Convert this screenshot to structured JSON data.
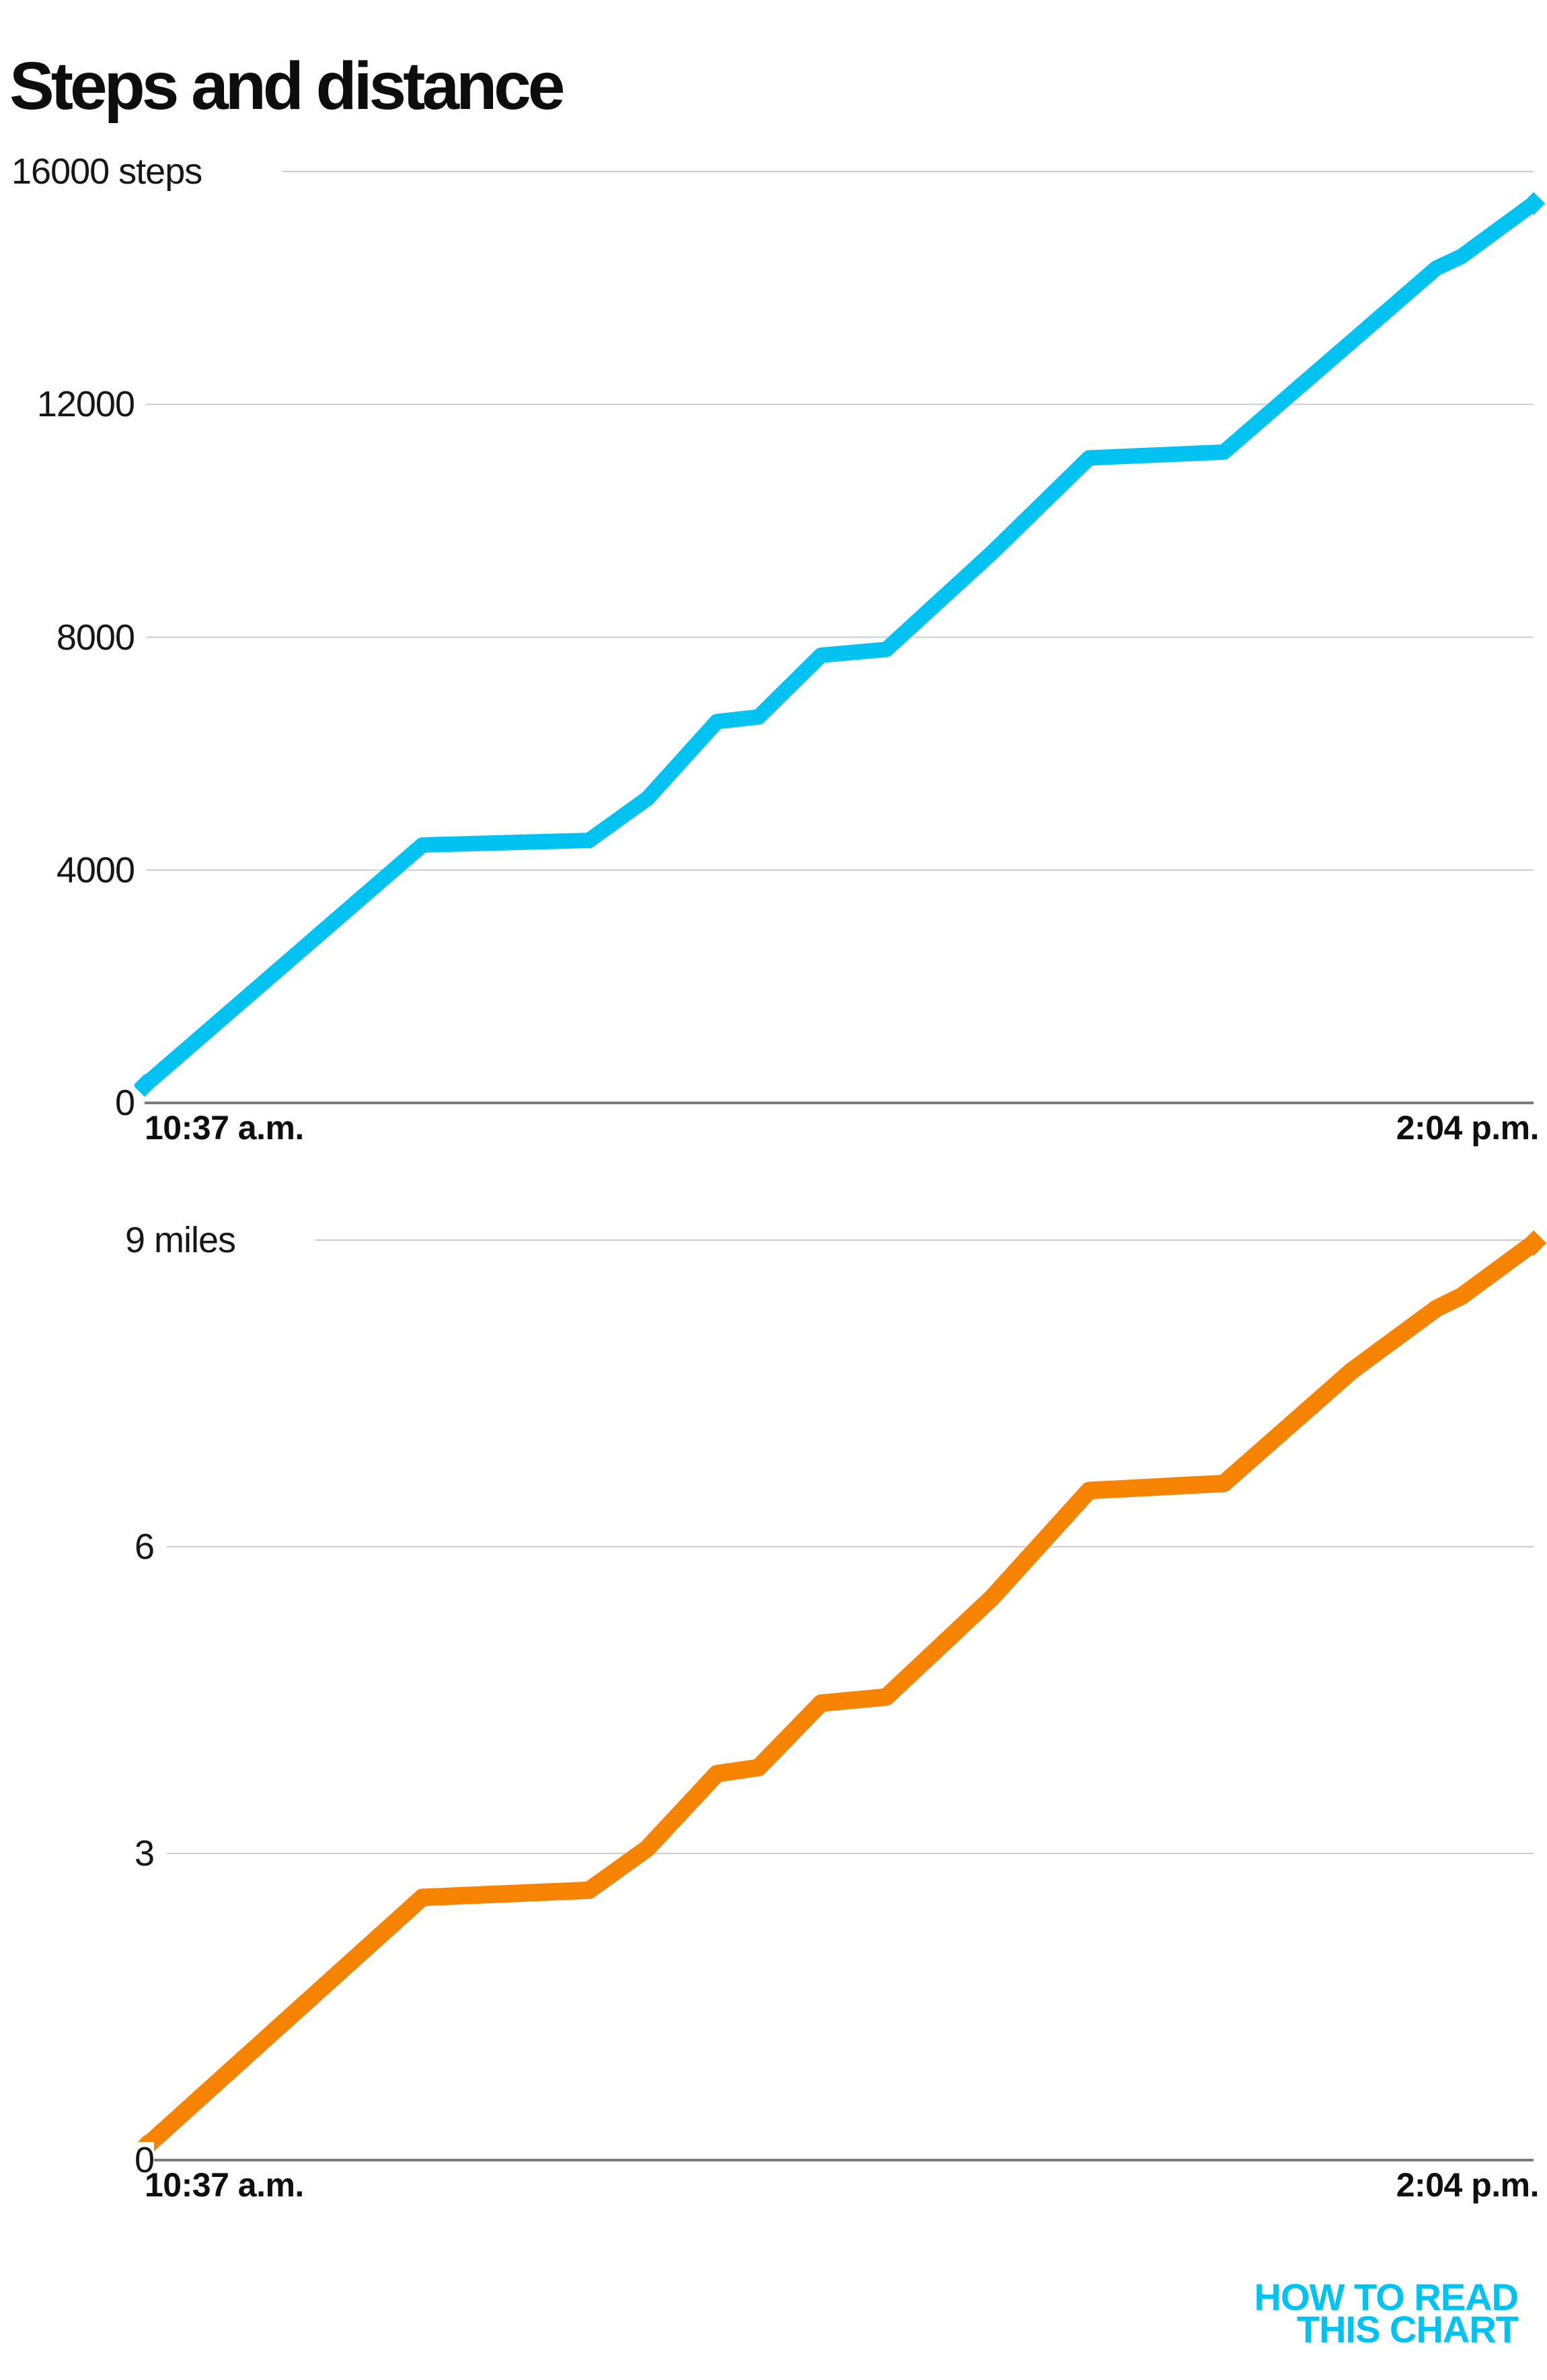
{
  "page": {
    "title": "Steps and distance"
  },
  "logo": {
    "line1": "HOW TO READ",
    "line2": "THIS CHART",
    "color": "#00c3f2"
  },
  "colors": {
    "grid": "#cdcdcd",
    "baseline": "#7a7a7a",
    "text": "#0f0f0f"
  },
  "chart_data": [
    {
      "type": "line",
      "name": "steps",
      "title": "Steps over time",
      "color": "#00c3f2",
      "ylim": [
        0,
        16000
      ],
      "grid": true,
      "legend_position": "none",
      "x_start_label": "10:37 a.m.",
      "x_end_label": "2:04 p.m.",
      "yticks": [
        {
          "value": 16000,
          "num": "16000",
          "unit": " steps"
        },
        {
          "value": 12000,
          "num": "12000",
          "unit": ""
        },
        {
          "value": 8000,
          "num": "8000",
          "unit": ""
        },
        {
          "value": 4000,
          "num": "4000",
          "unit": ""
        },
        {
          "value": 0,
          "num": "0",
          "unit": ""
        }
      ],
      "points": [
        [
          0.0,
          300
        ],
        [
          0.2,
          4430
        ],
        [
          0.32,
          4510
        ],
        [
          0.362,
          5230
        ],
        [
          0.412,
          6550
        ],
        [
          0.442,
          6630
        ],
        [
          0.487,
          7690
        ],
        [
          0.534,
          7790
        ],
        [
          0.61,
          9450
        ],
        [
          0.68,
          11080
        ],
        [
          0.777,
          11180
        ],
        [
          0.869,
          13080
        ],
        [
          0.93,
          14340
        ],
        [
          0.948,
          14540
        ],
        [
          1.0,
          15450
        ]
      ]
    },
    {
      "type": "line",
      "name": "distance",
      "title": "Distance over time",
      "color": "#f78400",
      "ylim": [
        0,
        9
      ],
      "grid": true,
      "legend_position": "none",
      "x_start_label": "10:37 a.m.",
      "x_end_label": "2:04 p.m.",
      "yticks": [
        {
          "value": 9,
          "num": "9",
          "unit": " miles"
        },
        {
          "value": 6,
          "num": "6",
          "unit": ""
        },
        {
          "value": 3,
          "num": "3",
          "unit": ""
        },
        {
          "value": 0,
          "num": "0",
          "unit": ""
        }
      ],
      "points": [
        [
          0.0,
          0.12
        ],
        [
          0.2,
          2.57
        ],
        [
          0.32,
          2.64
        ],
        [
          0.362,
          3.05
        ],
        [
          0.412,
          3.78
        ],
        [
          0.442,
          3.84
        ],
        [
          0.487,
          4.47
        ],
        [
          0.534,
          4.53
        ],
        [
          0.61,
          5.5
        ],
        [
          0.68,
          6.55
        ],
        [
          0.777,
          6.62
        ],
        [
          0.869,
          7.72
        ],
        [
          0.93,
          8.33
        ],
        [
          0.948,
          8.45
        ],
        [
          1.0,
          8.97
        ]
      ]
    }
  ]
}
